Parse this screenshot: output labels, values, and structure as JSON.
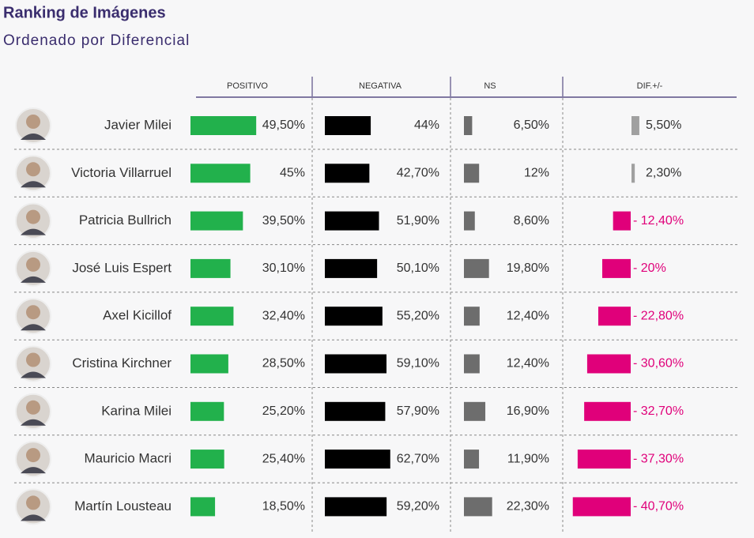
{
  "chart_data": {
    "type": "bar-table",
    "title": "Ranking de Imágenes",
    "subtitle": "Ordenado por Diferencial",
    "categories": [
      "Javier Milei",
      "Victoria Villarruel",
      "Patricia Bullrich",
      "José Luis Espert",
      "Axel Kicillof",
      "Cristina Kirchner",
      "Karina Milei",
      "Mauricio Macri",
      "Martín Lousteau"
    ],
    "series": [
      {
        "name": "POSITIVO",
        "color": "#22b14c",
        "values": [
          49.5,
          45,
          39.5,
          30.1,
          32.4,
          28.5,
          25.2,
          25.4,
          18.5
        ],
        "value_labels": [
          "49,50%",
          "45%",
          "39,50%",
          "30,10%",
          "32,40%",
          "28,50%",
          "25,20%",
          "25,40%",
          "18,50%"
        ]
      },
      {
        "name": "NEGATIVA",
        "color": "#000000",
        "values": [
          44,
          42.7,
          51.9,
          50.1,
          55.2,
          59.1,
          57.9,
          62.7,
          59.2
        ],
        "value_labels": [
          "44%",
          "42,70%",
          "51,90%",
          "50,10%",
          "55,20%",
          "59,10%",
          "57,90%",
          "62,70%",
          "59,20%"
        ]
      },
      {
        "name": "NS",
        "color": "#6d6d6d",
        "values": [
          6.5,
          12,
          8.6,
          19.8,
          12.4,
          12.4,
          16.9,
          11.9,
          22.3
        ],
        "value_labels": [
          "6,50%",
          "12%",
          "8,60%",
          "19,80%",
          "12,40%",
          "12,40%",
          "16,90%",
          "11,90%",
          "22,30%"
        ]
      },
      {
        "name": "DIF.+/-",
        "color": "#a0a0a0",
        "negative_color": "#e0007a",
        "values": [
          5.5,
          2.3,
          -12.4,
          -20,
          -22.8,
          -30.6,
          -32.7,
          -37.3,
          -40.7
        ],
        "value_labels": [
          "5,50%",
          "2,30%",
          "- 12,40%",
          "- 20%",
          "- 22,80%",
          "- 30,60%",
          "- 32,70%",
          "- 37,30%",
          "- 40,70%"
        ]
      }
    ]
  }
}
